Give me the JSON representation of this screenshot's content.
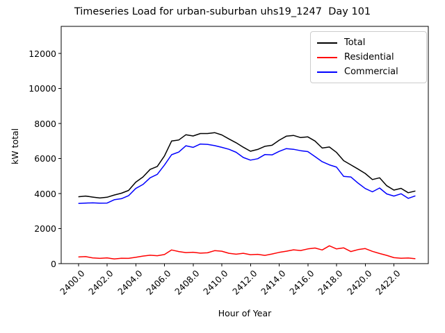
{
  "chart": {
    "title": "Timeseries Load for urban-suburban uhs19_1247  Day 101"
  },
  "chart_data": {
    "type": "line",
    "title": "Timeseries Load for urban-suburban uhs19_1247  Day 101",
    "xlabel": "Hour of Year",
    "ylabel": "kW total",
    "xlim": [
      2398.8,
      2424.4
    ],
    "ylim": [
      0,
      13550
    ],
    "grid": false,
    "legend_position": "upper right",
    "axis_color": "#000000",
    "legend_border_color": "#cccccc",
    "xticks": [
      2400,
      2402,
      2404,
      2406,
      2408,
      2410,
      2412,
      2414,
      2416,
      2418,
      2420,
      2422
    ],
    "xtick_labels": [
      "2400.0",
      "2402.0",
      "2404.0",
      "2406.0",
      "2408.0",
      "2410.0",
      "2412.0",
      "2414.0",
      "2416.0",
      "2418.0",
      "2420.0",
      "2422.0"
    ],
    "yticks": [
      0,
      2000,
      4000,
      6000,
      8000,
      10000,
      12000
    ],
    "ytick_labels": [
      "0",
      "2000",
      "4000",
      "6000",
      "8000",
      "10000",
      "12000"
    ],
    "x": [
      2400.0,
      2400.5,
      2401.0,
      2401.5,
      2402.0,
      2402.5,
      2403.0,
      2403.5,
      2404.0,
      2404.5,
      2405.0,
      2405.5,
      2406.0,
      2406.5,
      2407.0,
      2407.5,
      2408.0,
      2408.5,
      2409.0,
      2409.5,
      2410.0,
      2410.5,
      2411.0,
      2411.5,
      2412.0,
      2412.5,
      2413.0,
      2413.5,
      2414.0,
      2414.5,
      2415.0,
      2415.5,
      2416.0,
      2416.5,
      2417.0,
      2417.5,
      2418.0,
      2418.5,
      2419.0,
      2419.5,
      2420.0,
      2420.5,
      2421.0,
      2421.5,
      2422.0,
      2422.5,
      2423.0,
      2423.5
    ],
    "series": [
      {
        "name": "Total",
        "color": "#000000",
        "values": [
          3820,
          3860,
          3800,
          3750,
          3790,
          3920,
          4020,
          4180,
          4650,
          4950,
          5380,
          5550,
          6150,
          7000,
          7060,
          7360,
          7290,
          7430,
          7430,
          7480,
          7350,
          7120,
          6900,
          6650,
          6420,
          6520,
          6700,
          6760,
          7050,
          7280,
          7320,
          7200,
          7240,
          7000,
          6600,
          6660,
          6350,
          5880,
          5640,
          5400,
          5150,
          4800,
          4900,
          4450,
          4200,
          4300,
          4050,
          4150
        ]
      },
      {
        "name": "Residential",
        "color": "#ff0000",
        "values": [
          380,
          400,
          330,
          300,
          330,
          270,
          310,
          300,
          360,
          430,
          480,
          450,
          520,
          780,
          690,
          630,
          650,
          600,
          620,
          740,
          710,
          590,
          540,
          590,
          510,
          530,
          470,
          550,
          640,
          710,
          790,
          750,
          840,
          890,
          780,
          1020,
          840,
          900,
          690,
          800,
          860,
          700,
          580,
          470,
          340,
          310,
          320,
          280
        ]
      },
      {
        "name": "Commercial",
        "color": "#0000ff",
        "values": [
          3440,
          3460,
          3470,
          3450,
          3460,
          3650,
          3710,
          3880,
          4290,
          4520,
          4900,
          5100,
          5630,
          6220,
          6370,
          6730,
          6640,
          6830,
          6810,
          6740,
          6640,
          6530,
          6360,
          6060,
          5910,
          5990,
          6230,
          6210,
          6410,
          6570,
          6530,
          6450,
          6400,
          6110,
          5820,
          5640,
          5510,
          4980,
          4950,
          4600,
          4290,
          4100,
          4320,
          3980,
          3860,
          3990,
          3730,
          3870
        ]
      }
    ]
  }
}
